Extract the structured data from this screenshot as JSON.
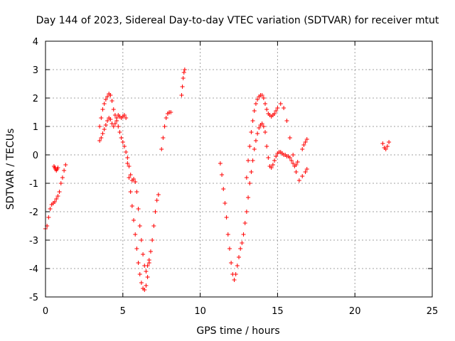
{
  "chart_data": {
    "type": "scatter",
    "title": "Day 144 of 2023, Sidereal Day-to-day VTEC variation (SDTVAR) for receiver mtut",
    "xlabel": "GPS time / hours",
    "ylabel": "SDTVAR / TECUs",
    "xlim": [
      0,
      25
    ],
    "ylim": [
      -5,
      4
    ],
    "xticks": [
      0,
      5,
      10,
      15,
      20,
      25
    ],
    "yticks": [
      -5,
      -4,
      -3,
      -2,
      -1,
      0,
      1,
      2,
      3,
      4
    ],
    "xtick_labels": [
      "0",
      "5",
      "10",
      "15",
      "20",
      "25"
    ],
    "ytick_labels": [
      "-5",
      "-4",
      "-3",
      "-2",
      "-1",
      "0",
      "1",
      "2",
      "3",
      "4"
    ],
    "grid": true,
    "marker": "plus",
    "color": "#ff0000",
    "series": [
      {
        "name": "SDTVAR",
        "x": [
          0.0,
          0.1,
          0.2,
          0.3,
          0.4,
          0.5,
          0.6,
          0.7,
          0.8,
          0.9,
          1.0,
          1.1,
          1.2,
          1.3,
          0.55,
          0.6,
          0.65,
          0.7,
          0.75,
          0.8,
          3.5,
          3.6,
          3.7,
          3.8,
          3.9,
          4.0,
          4.1,
          4.2,
          4.3,
          4.4,
          4.5,
          4.6,
          4.7,
          4.8,
          4.9,
          5.0,
          5.1,
          5.2,
          5.3,
          5.4,
          5.5,
          5.6,
          5.7,
          5.8,
          5.9,
          6.0,
          6.1,
          6.2,
          6.3,
          6.4,
          6.5,
          6.6,
          6.7,
          3.5,
          3.6,
          3.7,
          3.8,
          3.9,
          4.0,
          4.1,
          4.2,
          4.3,
          4.4,
          4.5,
          4.6,
          4.7,
          4.8,
          4.9,
          5.0,
          5.1,
          5.2,
          5.3,
          5.4,
          5.5,
          5.6,
          5.7,
          5.8,
          5.9,
          6.0,
          6.1,
          6.2,
          6.3,
          6.4,
          6.5,
          6.6,
          6.7,
          6.8,
          6.9,
          7.0,
          7.1,
          7.2,
          7.3,
          7.5,
          7.6,
          7.7,
          7.8,
          7.9,
          8.0,
          8.1,
          8.8,
          8.85,
          8.9,
          8.95,
          9.0,
          11.3,
          11.4,
          11.5,
          11.6,
          11.7,
          11.8,
          11.9,
          12.0,
          12.1,
          12.2,
          12.3,
          12.4,
          12.5,
          12.6,
          12.7,
          12.8,
          12.9,
          13.0,
          13.1,
          13.2,
          13.3,
          13.4,
          13.5,
          13.6,
          13.7,
          13.8,
          13.9,
          14.0,
          14.1,
          14.2,
          14.3,
          14.4,
          14.5,
          14.6,
          14.7,
          14.8,
          14.9,
          15.0,
          15.1,
          15.2,
          15.3,
          15.4,
          15.5,
          15.6,
          15.7,
          15.8,
          15.9,
          16.0,
          16.1,
          16.2,
          16.3,
          13.0,
          13.1,
          13.2,
          13.3,
          13.4,
          13.5,
          13.6,
          13.7,
          13.8,
          13.9,
          14.0,
          14.1,
          14.2,
          14.3,
          14.4,
          14.5,
          14.6,
          14.7,
          14.8,
          14.9,
          15.0,
          15.2,
          15.4,
          15.6,
          15.8,
          16.0,
          16.2,
          16.4,
          16.6,
          16.8,
          16.9,
          16.6,
          16.7,
          16.8,
          16.9,
          21.8,
          21.9,
          22.0,
          22.1,
          22.2
        ],
        "y": [
          -2.6,
          -2.5,
          -2.2,
          -1.9,
          -1.75,
          -1.7,
          -1.65,
          -1.55,
          -1.45,
          -1.3,
          -1.0,
          -0.8,
          -0.55,
          -0.35,
          -0.4,
          -0.45,
          -0.5,
          -0.55,
          -0.5,
          -0.45,
          1.0,
          1.3,
          1.6,
          1.8,
          1.95,
          2.05,
          2.15,
          2.1,
          1.9,
          1.6,
          1.4,
          1.2,
          1.0,
          0.8,
          0.6,
          0.45,
          0.3,
          0.1,
          -0.3,
          -0.8,
          -1.3,
          -1.8,
          -2.3,
          -2.8,
          -3.3,
          -3.8,
          -4.2,
          -4.5,
          -4.7,
          -4.75,
          -4.6,
          -4.3,
          -3.8,
          0.5,
          0.6,
          0.75,
          0.9,
          1.05,
          1.2,
          1.3,
          1.25,
          1.1,
          1.0,
          1.1,
          1.3,
          1.4,
          1.35,
          1.3,
          1.35,
          1.4,
          1.3,
          -0.1,
          -0.4,
          -0.7,
          -0.9,
          -0.85,
          -0.95,
          -1.3,
          -1.9,
          -2.5,
          -3.0,
          -3.5,
          -3.9,
          -4.1,
          -3.9,
          -3.7,
          -3.4,
          -3.0,
          -2.5,
          -2.0,
          -1.6,
          -1.4,
          0.2,
          0.6,
          1.0,
          1.3,
          1.45,
          1.5,
          1.5,
          2.1,
          2.4,
          2.7,
          2.9,
          3.0,
          -0.3,
          -0.7,
          -1.2,
          -1.7,
          -2.2,
          -2.8,
          -3.3,
          -3.8,
          -4.2,
          -4.4,
          -4.2,
          -3.9,
          -3.6,
          -3.3,
          -3.1,
          -2.8,
          -2.4,
          -2.0,
          -1.5,
          -1.0,
          -0.6,
          -0.2,
          0.2,
          0.5,
          0.75,
          0.95,
          1.05,
          1.1,
          1.0,
          0.8,
          0.3,
          -0.1,
          -0.4,
          -0.45,
          -0.35,
          -0.2,
          -0.05,
          0.05,
          0.1,
          0.1,
          0.05,
          0.0,
          0.0,
          -0.05,
          -0.05,
          -0.1,
          -0.2,
          -0.3,
          -0.4,
          -0.35,
          -0.25,
          -0.8,
          -0.2,
          0.3,
          0.8,
          1.2,
          1.55,
          1.8,
          1.95,
          2.05,
          2.1,
          2.1,
          2.0,
          1.8,
          1.6,
          1.45,
          1.4,
          1.35,
          1.4,
          1.45,
          1.55,
          1.65,
          1.8,
          1.65,
          1.2,
          0.6,
          0.0,
          -0.6,
          -0.9,
          -0.75,
          -0.6,
          -0.5,
          0.2,
          0.35,
          0.45,
          0.55,
          0.4,
          0.25,
          0.2,
          0.3,
          0.45
        ]
      }
    ]
  }
}
